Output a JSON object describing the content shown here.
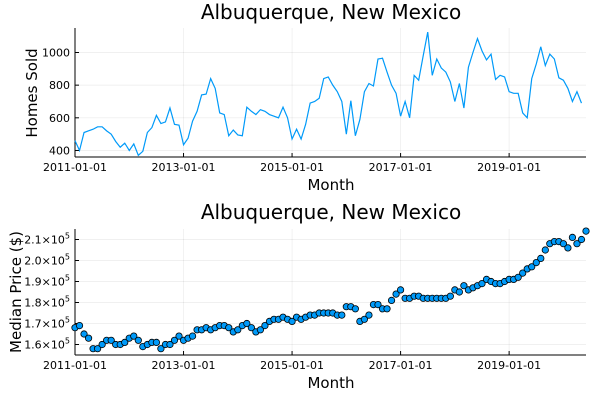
{
  "chart_data": [
    {
      "type": "line",
      "title": "Albuquerque, New Mexico",
      "xlabel": "Month",
      "ylabel": "Homes Sold",
      "xlim": [
        "2011-01-01",
        "2020-06-01"
      ],
      "ylim": [
        360,
        1150
      ],
      "xticks": [
        "2011-01-01",
        "2013-01-01",
        "2015-01-01",
        "2017-01-01",
        "2019-01-01"
      ],
      "yticks": [
        400,
        600,
        800,
        1000
      ],
      "grid": true,
      "color": "#009af9",
      "series": [
        {
          "x_start": "2011-01",
          "values": [
            460,
            400,
            510,
            520,
            530,
            545,
            545,
            520,
            500,
            455,
            420,
            445,
            400,
            440,
            370,
            395,
            510,
            540,
            615,
            565,
            575,
            660,
            560,
            555,
            435,
            475,
            580,
            640,
            740,
            745,
            840,
            780,
            630,
            620,
            490,
            525,
            495,
            490,
            665,
            640,
            620,
            650,
            640,
            620,
            610,
            600,
            665,
            600,
            470,
            530,
            470,
            560,
            690,
            700,
            720,
            840,
            850,
            800,
            760,
            700,
            500,
            705,
            490,
            590,
            760,
            810,
            795,
            960,
            965,
            880,
            800,
            750,
            610,
            700,
            600,
            860,
            830,
            980,
            1125,
            860,
            960,
            905,
            880,
            820,
            700,
            810,
            660,
            910,
            1000,
            1085,
            1010,
            955,
            990,
            835,
            860,
            850,
            760,
            750,
            750,
            630,
            600,
            840,
            930,
            1035,
            920,
            990,
            960,
            845,
            830,
            780,
            700,
            760,
            690
          ]
        }
      ]
    },
    {
      "type": "scatter",
      "title": "Albuquerque, New Mexico",
      "xlabel": "Month",
      "ylabel": "Median Price ($)",
      "xlim": [
        "2011-01-01",
        "2020-06-01"
      ],
      "ylim": [
        155000,
        215000
      ],
      "xticks": [
        "2011-01-01",
        "2013-01-01",
        "2015-01-01",
        "2017-01-01",
        "2019-01-01"
      ],
      "yticks": [
        {
          "mantissa": "1.6×10",
          "exp": "5",
          "value": 160000
        },
        {
          "mantissa": "1.7×10",
          "exp": "5",
          "value": 170000
        },
        {
          "mantissa": "1.8×10",
          "exp": "5",
          "value": 180000
        },
        {
          "mantissa": "1.9×10",
          "exp": "5",
          "value": 190000
        },
        {
          "mantissa": "2.0×10",
          "exp": "5",
          "value": 200000
        },
        {
          "mantissa": "2.1×10",
          "exp": "5",
          "value": 210000
        }
      ],
      "grid": true,
      "color": "#009af9",
      "series": [
        {
          "x_start": "2011-01",
          "values": [
            168000,
            169000,
            165000,
            163000,
            158000,
            158000,
            160000,
            162000,
            162000,
            160000,
            160000,
            161000,
            163000,
            164000,
            162000,
            159000,
            160000,
            161000,
            161000,
            158000,
            160000,
            160000,
            162000,
            164000,
            162000,
            163000,
            164000,
            167000,
            167000,
            168000,
            167000,
            168000,
            169000,
            169000,
            168000,
            166000,
            167000,
            169000,
            170000,
            168000,
            166000,
            167000,
            169000,
            171000,
            172000,
            172000,
            173000,
            172000,
            171000,
            173000,
            172000,
            173000,
            174000,
            174000,
            175000,
            175000,
            175000,
            175000,
            174000,
            174000,
            178000,
            178000,
            177000,
            171000,
            172000,
            174000,
            179000,
            179000,
            177000,
            177000,
            181000,
            184000,
            186000,
            182000,
            182000,
            183000,
            183000,
            182000,
            182000,
            182000,
            182000,
            182000,
            182000,
            183000,
            186000,
            185000,
            188000,
            186000,
            187000,
            188000,
            189000,
            191000,
            190000,
            189000,
            189000,
            190000,
            191000,
            191000,
            192000,
            194000,
            196000,
            197000,
            199000,
            201000,
            205000,
            208000,
            209000,
            209000,
            208000,
            206000,
            211000,
            208000,
            210000,
            214000
          ]
        }
      ]
    }
  ]
}
